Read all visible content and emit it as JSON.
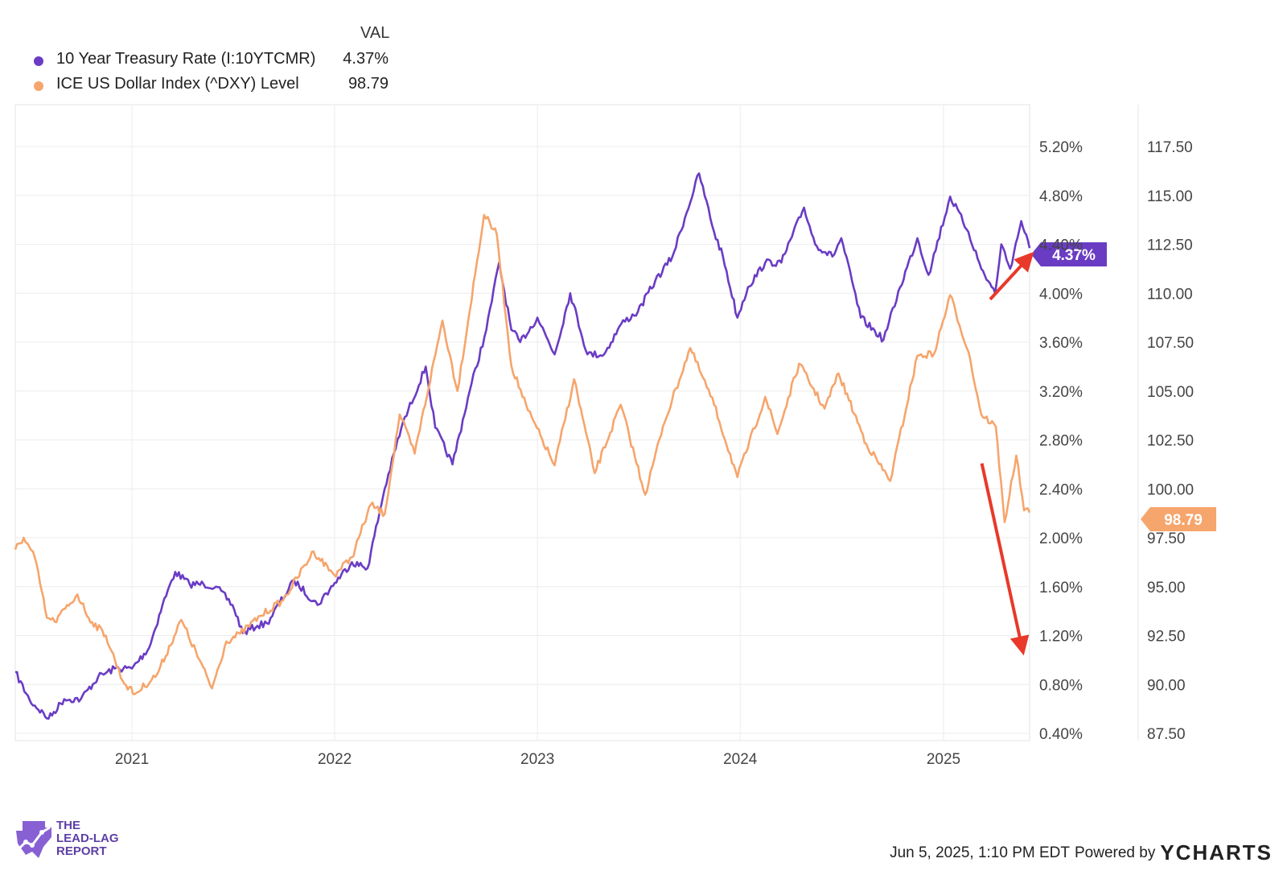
{
  "legend": {
    "header": "VAL",
    "items": [
      {
        "label": "10 Year Treasury Rate (I:10YTCMR)",
        "value": "4.37%",
        "color": "#6a3cc4"
      },
      {
        "label": "ICE US Dollar Index (^DXY) Level",
        "value": "98.79",
        "color": "#f6a56c"
      }
    ]
  },
  "footer": {
    "timestamp": "Jun 5, 2025, 1:10 PM EDT",
    "powered": "Powered by",
    "brand": "YCHARTS"
  },
  "logo": {
    "line1": "THE",
    "line2": "LEAD-LAG",
    "line3": "REPORT"
  },
  "chart_data": {
    "type": "line",
    "x_ticks": [
      "2021",
      "2022",
      "2023",
      "2024",
      "2025"
    ],
    "y_left": {
      "ticks": [
        "0.40%",
        "0.80%",
        "1.20%",
        "1.60%",
        "2.00%",
        "2.40%",
        "2.80%",
        "3.20%",
        "3.60%",
        "4.00%",
        "4.40%",
        "4.80%",
        "5.20%"
      ],
      "range": [
        0.4,
        5.2
      ]
    },
    "y_right": {
      "ticks": [
        "87.50",
        "90.00",
        "92.50",
        "95.00",
        "97.50",
        "100.00",
        "102.50",
        "105.00",
        "107.50",
        "110.00",
        "112.50",
        "115.00",
        "117.50"
      ],
      "range": [
        87.5,
        117.5
      ]
    },
    "grid": true,
    "legend_position": "top-left",
    "series": [
      {
        "name": "10 Year Treasury Rate (I:10YTCMR)",
        "axis": "left",
        "color": "#6a3cc4",
        "end_label": "4.37%",
        "points": [
          [
            "2020-06-05",
            0.9
          ],
          [
            "2020-07-01",
            0.67
          ],
          [
            "2020-08-04",
            0.52
          ],
          [
            "2020-09-01",
            0.68
          ],
          [
            "2020-10-01",
            0.68
          ],
          [
            "2020-11-01",
            0.86
          ],
          [
            "2020-12-01",
            0.93
          ],
          [
            "2021-01-01",
            0.93
          ],
          [
            "2021-02-01",
            1.1
          ],
          [
            "2021-02-25",
            1.45
          ],
          [
            "2021-03-20",
            1.72
          ],
          [
            "2021-04-15",
            1.62
          ],
          [
            "2021-05-10",
            1.62
          ],
          [
            "2021-06-01",
            1.6
          ],
          [
            "2021-07-01",
            1.45
          ],
          [
            "2021-07-20",
            1.22
          ],
          [
            "2021-08-15",
            1.28
          ],
          [
            "2021-09-01",
            1.3
          ],
          [
            "2021-10-20",
            1.65
          ],
          [
            "2021-12-01",
            1.45
          ],
          [
            "2022-01-01",
            1.63
          ],
          [
            "2022-02-01",
            1.8
          ],
          [
            "2022-03-01",
            1.75
          ],
          [
            "2022-04-01",
            2.4
          ],
          [
            "2022-05-01",
            2.9
          ],
          [
            "2022-06-14",
            3.4
          ],
          [
            "2022-07-01",
            2.9
          ],
          [
            "2022-08-01",
            2.6
          ],
          [
            "2022-09-01",
            3.2
          ],
          [
            "2022-10-01",
            3.7
          ],
          [
            "2022-10-24",
            4.25
          ],
          [
            "2022-11-15",
            3.7
          ],
          [
            "2022-12-01",
            3.6
          ],
          [
            "2023-01-01",
            3.8
          ],
          [
            "2023-02-01",
            3.5
          ],
          [
            "2023-03-01",
            4.0
          ],
          [
            "2023-04-01",
            3.5
          ],
          [
            "2023-05-01",
            3.5
          ],
          [
            "2023-06-01",
            3.75
          ],
          [
            "2023-07-01",
            3.85
          ],
          [
            "2023-08-01",
            4.1
          ],
          [
            "2023-09-01",
            4.3
          ],
          [
            "2023-10-19",
            4.98
          ],
          [
            "2023-11-15",
            4.5
          ],
          [
            "2023-12-01",
            4.3
          ],
          [
            "2023-12-27",
            3.8
          ],
          [
            "2024-01-15",
            4.05
          ],
          [
            "2024-02-15",
            4.25
          ],
          [
            "2024-03-15",
            4.25
          ],
          [
            "2024-04-25",
            4.7
          ],
          [
            "2024-05-15",
            4.4
          ],
          [
            "2024-06-15",
            4.3
          ],
          [
            "2024-07-01",
            4.45
          ],
          [
            "2024-08-05",
            3.8
          ],
          [
            "2024-09-15",
            3.62
          ],
          [
            "2024-10-15",
            4.05
          ],
          [
            "2024-11-15",
            4.45
          ],
          [
            "2024-12-05",
            4.15
          ],
          [
            "2025-01-13",
            4.79
          ],
          [
            "2025-02-15",
            4.5
          ],
          [
            "2025-03-10",
            4.2
          ],
          [
            "2025-04-04",
            4.0
          ],
          [
            "2025-04-15",
            4.4
          ],
          [
            "2025-05-01",
            4.2
          ],
          [
            "2025-05-21",
            4.59
          ],
          [
            "2025-06-05",
            4.37
          ]
        ]
      },
      {
        "name": "ICE US Dollar Index (^DXY) Level",
        "axis": "right",
        "color": "#f6a56c",
        "end_label": "98.79",
        "points": [
          [
            "2020-06-05",
            96.9
          ],
          [
            "2020-06-20",
            97.5
          ],
          [
            "2020-07-10",
            96.5
          ],
          [
            "2020-08-01",
            93.4
          ],
          [
            "2020-08-15",
            93.2
          ],
          [
            "2020-09-25",
            94.6
          ],
          [
            "2020-10-15",
            93.4
          ],
          [
            "2020-11-15",
            92.5
          ],
          [
            "2020-12-15",
            90.2
          ],
          [
            "2021-01-06",
            89.5
          ],
          [
            "2021-02-15",
            90.5
          ],
          [
            "2021-03-31",
            93.3
          ],
          [
            "2021-05-25",
            89.8
          ],
          [
            "2021-06-20",
            92.2
          ],
          [
            "2021-07-15",
            92.6
          ],
          [
            "2021-08-20",
            93.5
          ],
          [
            "2021-09-30",
            94.3
          ],
          [
            "2021-11-24",
            96.8
          ],
          [
            "2021-12-31",
            95.6
          ],
          [
            "2022-02-01",
            96.5
          ],
          [
            "2022-03-07",
            99.2
          ],
          [
            "2022-04-01",
            98.7
          ],
          [
            "2022-04-28",
            103.8
          ],
          [
            "2022-05-25",
            101.8
          ],
          [
            "2022-07-14",
            108.6
          ],
          [
            "2022-08-10",
            105.0
          ],
          [
            "2022-09-27",
            114.0
          ],
          [
            "2022-10-20",
            113.0
          ],
          [
            "2022-11-15",
            106.3
          ],
          [
            "2022-12-15",
            104.0
          ],
          [
            "2023-02-01",
            101.2
          ],
          [
            "2023-03-08",
            105.6
          ],
          [
            "2023-04-14",
            100.8
          ],
          [
            "2023-05-31",
            104.3
          ],
          [
            "2023-07-14",
            99.7
          ],
          [
            "2023-08-15",
            103.2
          ],
          [
            "2023-10-03",
            107.2
          ],
          [
            "2023-11-15",
            104.3
          ],
          [
            "2023-12-27",
            100.6
          ],
          [
            "2024-02-15",
            104.7
          ],
          [
            "2024-03-08",
            102.8
          ],
          [
            "2024-04-16",
            106.4
          ],
          [
            "2024-06-01",
            104.1
          ],
          [
            "2024-06-26",
            105.9
          ],
          [
            "2024-08-15",
            102.3
          ],
          [
            "2024-09-27",
            100.4
          ],
          [
            "2024-11-15",
            106.8
          ],
          [
            "2024-12-15",
            106.9
          ],
          [
            "2025-01-13",
            109.9
          ],
          [
            "2025-02-15",
            107.0
          ],
          [
            "2025-03-10",
            103.8
          ],
          [
            "2025-04-05",
            103.2
          ],
          [
            "2025-04-21",
            98.3
          ],
          [
            "2025-05-12",
            101.7
          ],
          [
            "2025-05-26",
            98.9
          ],
          [
            "2025-06-05",
            98.79
          ]
        ]
      }
    ],
    "annotations": [
      {
        "type": "arrow",
        "color": "#e8392a",
        "from": [
          "2025-03-26",
          3.95
        ],
        "to": [
          "2025-06-05",
          4.3
        ]
      },
      {
        "type": "arrow",
        "color": "#e8392a",
        "from": [
          "2025-03-11",
          101.3
        ],
        "to": [
          "2025-05-23",
          91.8
        ]
      }
    ]
  }
}
